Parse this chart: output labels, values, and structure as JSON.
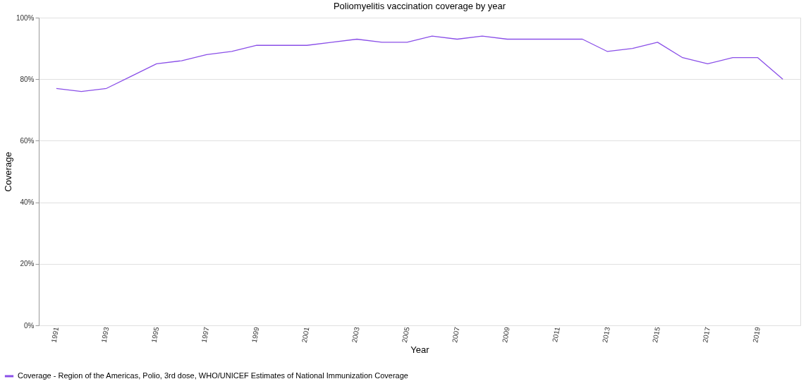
{
  "chart_data": {
    "type": "line",
    "title": "Poliomyelitis vaccination coverage by year",
    "xlabel": "Year",
    "ylabel": "Coverage",
    "x": [
      1991,
      1992,
      1993,
      1994,
      1995,
      1996,
      1997,
      1998,
      1999,
      2000,
      2001,
      2002,
      2003,
      2004,
      2005,
      2006,
      2007,
      2008,
      2009,
      2010,
      2011,
      2012,
      2013,
      2014,
      2015,
      2016,
      2017,
      2018,
      2019,
      2020
    ],
    "series": [
      {
        "name": "Coverage - Region of the Americas, Polio, 3rd dose, WHO/UNICEF Estimates of National Immunization Coverage",
        "color": "#8a4fe8",
        "values": [
          77,
          76,
          77,
          81,
          85,
          86,
          88,
          89,
          91,
          91,
          91,
          92,
          93,
          92,
          92,
          94,
          93,
          94,
          93,
          93,
          93,
          93,
          89,
          90,
          92,
          87,
          85,
          87,
          87,
          80
        ]
      }
    ],
    "xlim": [
      1990.3,
      2020.7
    ],
    "xticks": [
      1991,
      1993,
      1995,
      1997,
      1999,
      2001,
      2003,
      2005,
      2007,
      2009,
      2011,
      2013,
      2015,
      2017,
      2019
    ],
    "ylim": [
      0,
      100
    ],
    "yticks": [
      {
        "value": 0,
        "label": "0%"
      },
      {
        "value": 20,
        "label": "20%"
      },
      {
        "value": 40,
        "label": "40%"
      },
      {
        "value": 60,
        "label": "60%"
      },
      {
        "value": 80,
        "label": "80%"
      },
      {
        "value": 100,
        "label": "100%"
      }
    ],
    "grid": "y",
    "legend": "bottom left",
    "marker": "none",
    "line_style": "solid"
  }
}
